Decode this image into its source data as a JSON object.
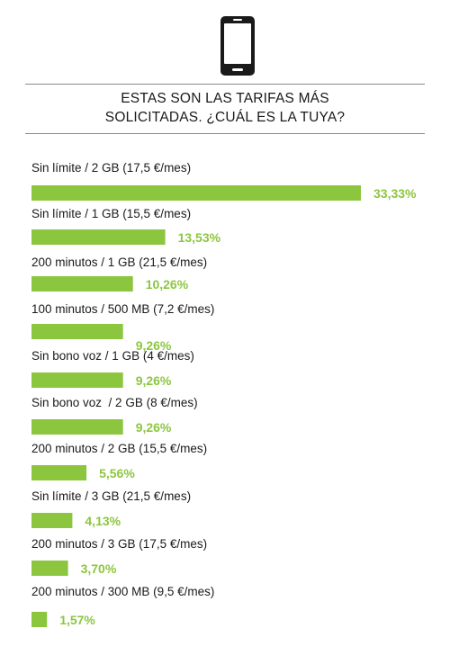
{
  "header": {
    "icon": "smartphone-icon",
    "title_line1": "ESTAS SON LAS TARIFAS MÁS",
    "title_line2": "SOLICITADAS. ¿CUÁL ES LA TUYA?"
  },
  "colors": {
    "bar": "#8cc63f",
    "value_text": "#8cc63f",
    "rule": "#8a8a8a",
    "text": "#1a1a1a"
  },
  "chart_data": {
    "type": "bar",
    "orientation": "horizontal",
    "categories": [
      "Sin límite / 2 GB (17,5 €/mes)",
      "Sin límite / 1 GB (15,5 €/mes)",
      "200 minutos / 1 GB (21,5 €/mes)",
      "100 minutos / 500 MB (7,2 €/mes)",
      "Sin bono voz / 1 GB (4 €/mes)",
      "Sin bono voz  / 2 GB (8 €/mes)",
      "200 minutos / 2 GB (15,5 €/mes)",
      "Sin límite / 3 GB (21,5 €/mes)",
      "200 minutos / 3 GB (17,5 €/mes)",
      "200 minutos / 300 MB (9,5 €/mes)"
    ],
    "values": [
      33.33,
      13.53,
      10.26,
      9.26,
      9.26,
      9.26,
      5.56,
      4.13,
      3.7,
      1.57
    ],
    "value_labels": [
      "33,33%",
      "13,53%",
      "10,26%",
      "9,26%",
      "9,26%",
      "9,26%",
      "5,56%",
      "4,13%",
      "3,70%",
      "1,57%"
    ],
    "unit": "%",
    "title": "ESTAS SON LAS TARIFAS MÁS SOLICITADAS. ¿CUÁL ES LA TUYA?",
    "xlabel": "",
    "ylabel": "",
    "grid": false,
    "legend": "none"
  }
}
